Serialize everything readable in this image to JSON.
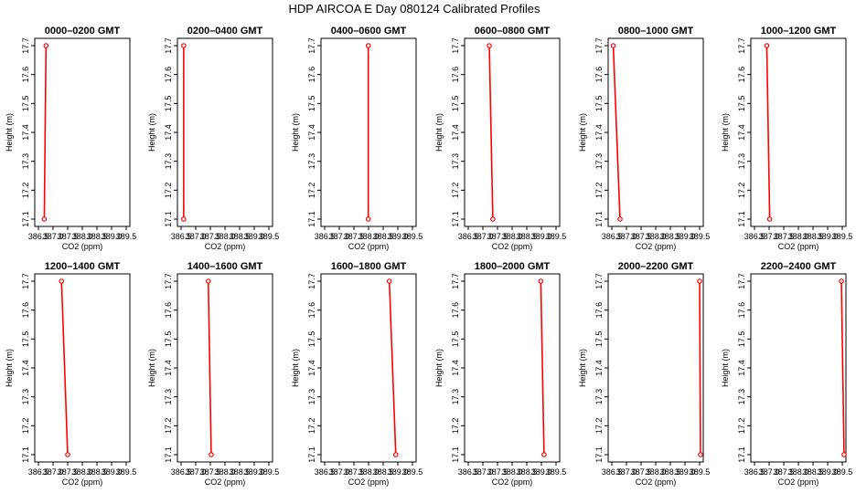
{
  "figure": {
    "title": "HDP  AIRCOA E  Day 080124  Calibrated Profiles"
  },
  "colors": {
    "line": "#ff0000",
    "marker": "#ff0000",
    "axes": "#000000"
  },
  "chart_data": [
    {
      "type": "line",
      "title": "0000–0200 GMT",
      "xlabel": "CO2 (ppm)",
      "ylabel": "Height (m)",
      "xlim": [
        386.5,
        389.5
      ],
      "ylim": [
        17.1,
        17.7
      ],
      "xticks": [
        "386.5",
        "387.0",
        "387.5",
        "388.0",
        "388.5",
        "389.0",
        "389.5"
      ],
      "yticks": [
        "17.1",
        "17.2",
        "17.3",
        "17.4",
        "17.5",
        "17.6",
        "17.7"
      ],
      "series": [
        {
          "x": [
            386.7,
            386.76
          ],
          "y": [
            17.1,
            17.7
          ]
        }
      ]
    },
    {
      "type": "line",
      "title": "0200–0400 GMT",
      "xlabel": "CO2 (ppm)",
      "ylabel": "Height (m)",
      "xlim": [
        386.5,
        389.5
      ],
      "ylim": [
        17.1,
        17.7
      ],
      "xticks": [
        "386.5",
        "387.0",
        "387.5",
        "388.0",
        "388.5",
        "389.0",
        "389.5"
      ],
      "yticks": [
        "17.1",
        "17.2",
        "17.3",
        "17.4",
        "17.5",
        "17.6",
        "17.7"
      ],
      "series": [
        {
          "x": [
            386.59,
            386.59
          ],
          "y": [
            17.1,
            17.7
          ]
        }
      ]
    },
    {
      "type": "line",
      "title": "0400–0600 GMT",
      "xlabel": "CO2 (ppm)",
      "ylabel": "Height (m)",
      "xlim": [
        386.5,
        389.5
      ],
      "ylim": [
        17.1,
        17.7
      ],
      "xticks": [
        "386.5",
        "387.0",
        "387.5",
        "388.0",
        "388.5",
        "389.0",
        "389.5"
      ],
      "yticks": [
        "17.1",
        "17.2",
        "17.3",
        "17.4",
        "17.5",
        "17.6",
        "17.7"
      ],
      "series": [
        {
          "x": [
            387.99,
            387.99
          ],
          "y": [
            17.1,
            17.7
          ]
        }
      ]
    },
    {
      "type": "line",
      "title": "0600–0800 GMT",
      "xlabel": "CO2 (ppm)",
      "ylabel": "Height (m)",
      "xlim": [
        386.5,
        389.5
      ],
      "ylim": [
        17.1,
        17.7
      ],
      "xticks": [
        "386.5",
        "387.0",
        "387.5",
        "388.0",
        "388.5",
        "389.0",
        "389.5"
      ],
      "yticks": [
        "17.1",
        "17.2",
        "17.3",
        "17.4",
        "17.5",
        "17.6",
        "17.7"
      ],
      "series": [
        {
          "x": [
            387.34,
            387.22
          ],
          "y": [
            17.1,
            17.7
          ]
        }
      ]
    },
    {
      "type": "line",
      "title": "0800–1000 GMT",
      "xlabel": "CO2 (ppm)",
      "ylabel": "Height (m)",
      "xlim": [
        386.5,
        389.5
      ],
      "ylim": [
        17.1,
        17.7
      ],
      "xticks": [
        "386.5",
        "387.0",
        "387.5",
        "388.0",
        "388.5",
        "389.0",
        "389.5"
      ],
      "yticks": [
        "17.1",
        "17.2",
        "17.3",
        "17.4",
        "17.5",
        "17.6",
        "17.7"
      ],
      "series": [
        {
          "x": [
            386.78,
            386.55
          ],
          "y": [
            17.1,
            17.7
          ]
        }
      ]
    },
    {
      "type": "line",
      "title": "1000–1200 GMT",
      "xlabel": "CO2 (ppm)",
      "ylabel": "Height (m)",
      "xlim": [
        386.5,
        389.5
      ],
      "ylim": [
        17.1,
        17.7
      ],
      "xticks": [
        "386.5",
        "387.0",
        "387.5",
        "388.0",
        "388.5",
        "389.0",
        "389.5"
      ],
      "yticks": [
        "17.1",
        "17.2",
        "17.3",
        "17.4",
        "17.5",
        "17.6",
        "17.7"
      ],
      "series": [
        {
          "x": [
            387.02,
            386.92
          ],
          "y": [
            17.1,
            17.7
          ]
        }
      ]
    },
    {
      "type": "line",
      "title": "1200–1400 GMT",
      "xlabel": "CO2 (ppm)",
      "ylabel": "Height (m)",
      "xlim": [
        386.5,
        389.5
      ],
      "ylim": [
        17.1,
        17.7
      ],
      "xticks": [
        "386.5",
        "387.0",
        "387.5",
        "388.0",
        "388.5",
        "389.0",
        "389.5"
      ],
      "yticks": [
        "17.1",
        "17.2",
        "17.3",
        "17.4",
        "17.5",
        "17.6",
        "17.7"
      ],
      "series": [
        {
          "x": [
            387.5,
            387.29
          ],
          "y": [
            17.1,
            17.7
          ]
        }
      ]
    },
    {
      "type": "line",
      "title": "1400–1600 GMT",
      "xlabel": "CO2 (ppm)",
      "ylabel": "Height (m)",
      "xlim": [
        386.5,
        389.5
      ],
      "ylim": [
        17.1,
        17.7
      ],
      "xticks": [
        "386.5",
        "387.0",
        "387.5",
        "388.0",
        "388.5",
        "389.0",
        "389.5"
      ],
      "yticks": [
        "17.1",
        "17.2",
        "17.3",
        "17.4",
        "17.5",
        "17.6",
        "17.7"
      ],
      "series": [
        {
          "x": [
            387.53,
            387.43
          ],
          "y": [
            17.1,
            17.7
          ]
        }
      ]
    },
    {
      "type": "line",
      "title": "1600–1800 GMT",
      "xlabel": "CO2 (ppm)",
      "ylabel": "Height (m)",
      "xlim": [
        386.5,
        389.5
      ],
      "ylim": [
        17.1,
        17.7
      ],
      "xticks": [
        "386.5",
        "387.0",
        "387.5",
        "388.0",
        "388.5",
        "389.0",
        "389.5"
      ],
      "yticks": [
        "17.1",
        "17.2",
        "17.3",
        "17.4",
        "17.5",
        "17.6",
        "17.7"
      ],
      "series": [
        {
          "x": [
            388.93,
            388.71
          ],
          "y": [
            17.1,
            17.7
          ]
        }
      ]
    },
    {
      "type": "line",
      "title": "1800–2000 GMT",
      "xlabel": "CO2 (ppm)",
      "ylabel": "Height (m)",
      "xlim": [
        386.5,
        389.5
      ],
      "ylim": [
        17.1,
        17.7
      ],
      "xticks": [
        "386.5",
        "387.0",
        "387.5",
        "388.0",
        "388.5",
        "389.0",
        "389.5"
      ],
      "yticks": [
        "17.1",
        "17.2",
        "17.3",
        "17.4",
        "17.5",
        "17.6",
        "17.7"
      ],
      "series": [
        {
          "x": [
            389.09,
            388.98
          ],
          "y": [
            17.1,
            17.7
          ]
        }
      ]
    },
    {
      "type": "line",
      "title": "2000–2200 GMT",
      "xlabel": "CO2 (ppm)",
      "ylabel": "Height (m)",
      "xlim": [
        386.5,
        389.5
      ],
      "ylim": [
        17.1,
        17.7
      ],
      "xticks": [
        "386.5",
        "387.0",
        "387.5",
        "388.0",
        "388.5",
        "389.0",
        "389.5"
      ],
      "yticks": [
        "17.1",
        "17.2",
        "17.3",
        "17.4",
        "17.5",
        "17.6",
        "17.7"
      ],
      "series": [
        {
          "x": [
            389.53,
            389.5
          ],
          "y": [
            17.1,
            17.7
          ]
        }
      ]
    },
    {
      "type": "line",
      "title": "2200–2400 GMT",
      "xlabel": "CO2 (ppm)",
      "ylabel": "Height (m)",
      "xlim": [
        386.5,
        389.5
      ],
      "ylim": [
        17.1,
        17.7
      ],
      "xticks": [
        "386.5",
        "387.0",
        "387.5",
        "388.0",
        "388.5",
        "389.0",
        "389.5"
      ],
      "yticks": [
        "17.1",
        "17.2",
        "17.3",
        "17.4",
        "17.5",
        "17.6",
        "17.7"
      ],
      "series": [
        {
          "x": [
            389.56,
            389.47
          ],
          "y": [
            17.1,
            17.7
          ]
        }
      ]
    }
  ]
}
